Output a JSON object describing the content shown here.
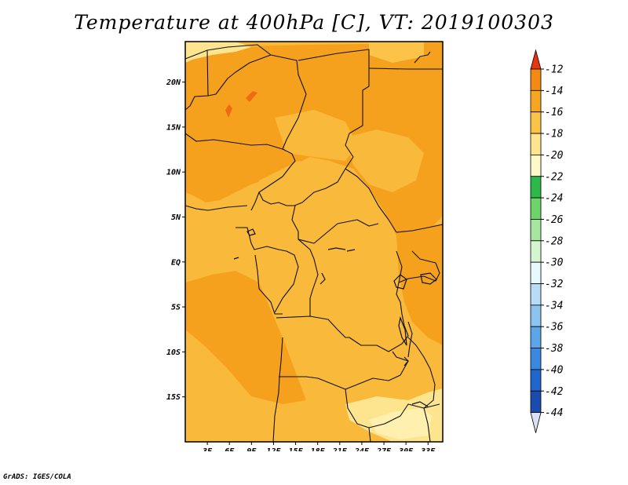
{
  "title": "Temperature at 400hPa [C], VT: 2019100303",
  "credit": "GrADS: IGES/COLA",
  "map": {
    "lat_labels": [
      "20N",
      "15N",
      "10N",
      "5N",
      "EQ",
      "5S",
      "10S",
      "15S"
    ],
    "lon_labels": [
      "3E",
      "6E",
      "9E",
      "12E",
      "15E",
      "18E",
      "21E",
      "24E",
      "27E",
      "30E",
      "33E"
    ],
    "lat_range": [
      -20,
      24.5
    ],
    "lon_range": [
      0,
      35
    ]
  },
  "colorbar": {
    "labels": [
      "-12",
      "-14",
      "-16",
      "-18",
      "-20",
      "-22",
      "-24",
      "-26",
      "-28",
      "-30",
      "-32",
      "-34",
      "-36",
      "-38",
      "-40",
      "-42",
      "-44"
    ],
    "colors": [
      "#f05a10",
      "#f28a14",
      "#f6a622",
      "#fbc449",
      "#fde48f",
      "#fff8c8",
      "#2db84a",
      "#6fd36b",
      "#a6e6a0",
      "#d4f5d0",
      "#e8f8ff",
      "#b8dcf6",
      "#8cc4f0",
      "#5aa6e8",
      "#3a88e0",
      "#2066cc",
      "#1a4cb0",
      "#0e2a90"
    ],
    "over_color": "#e8360c",
    "under_color": "#dbe0f4"
  }
}
